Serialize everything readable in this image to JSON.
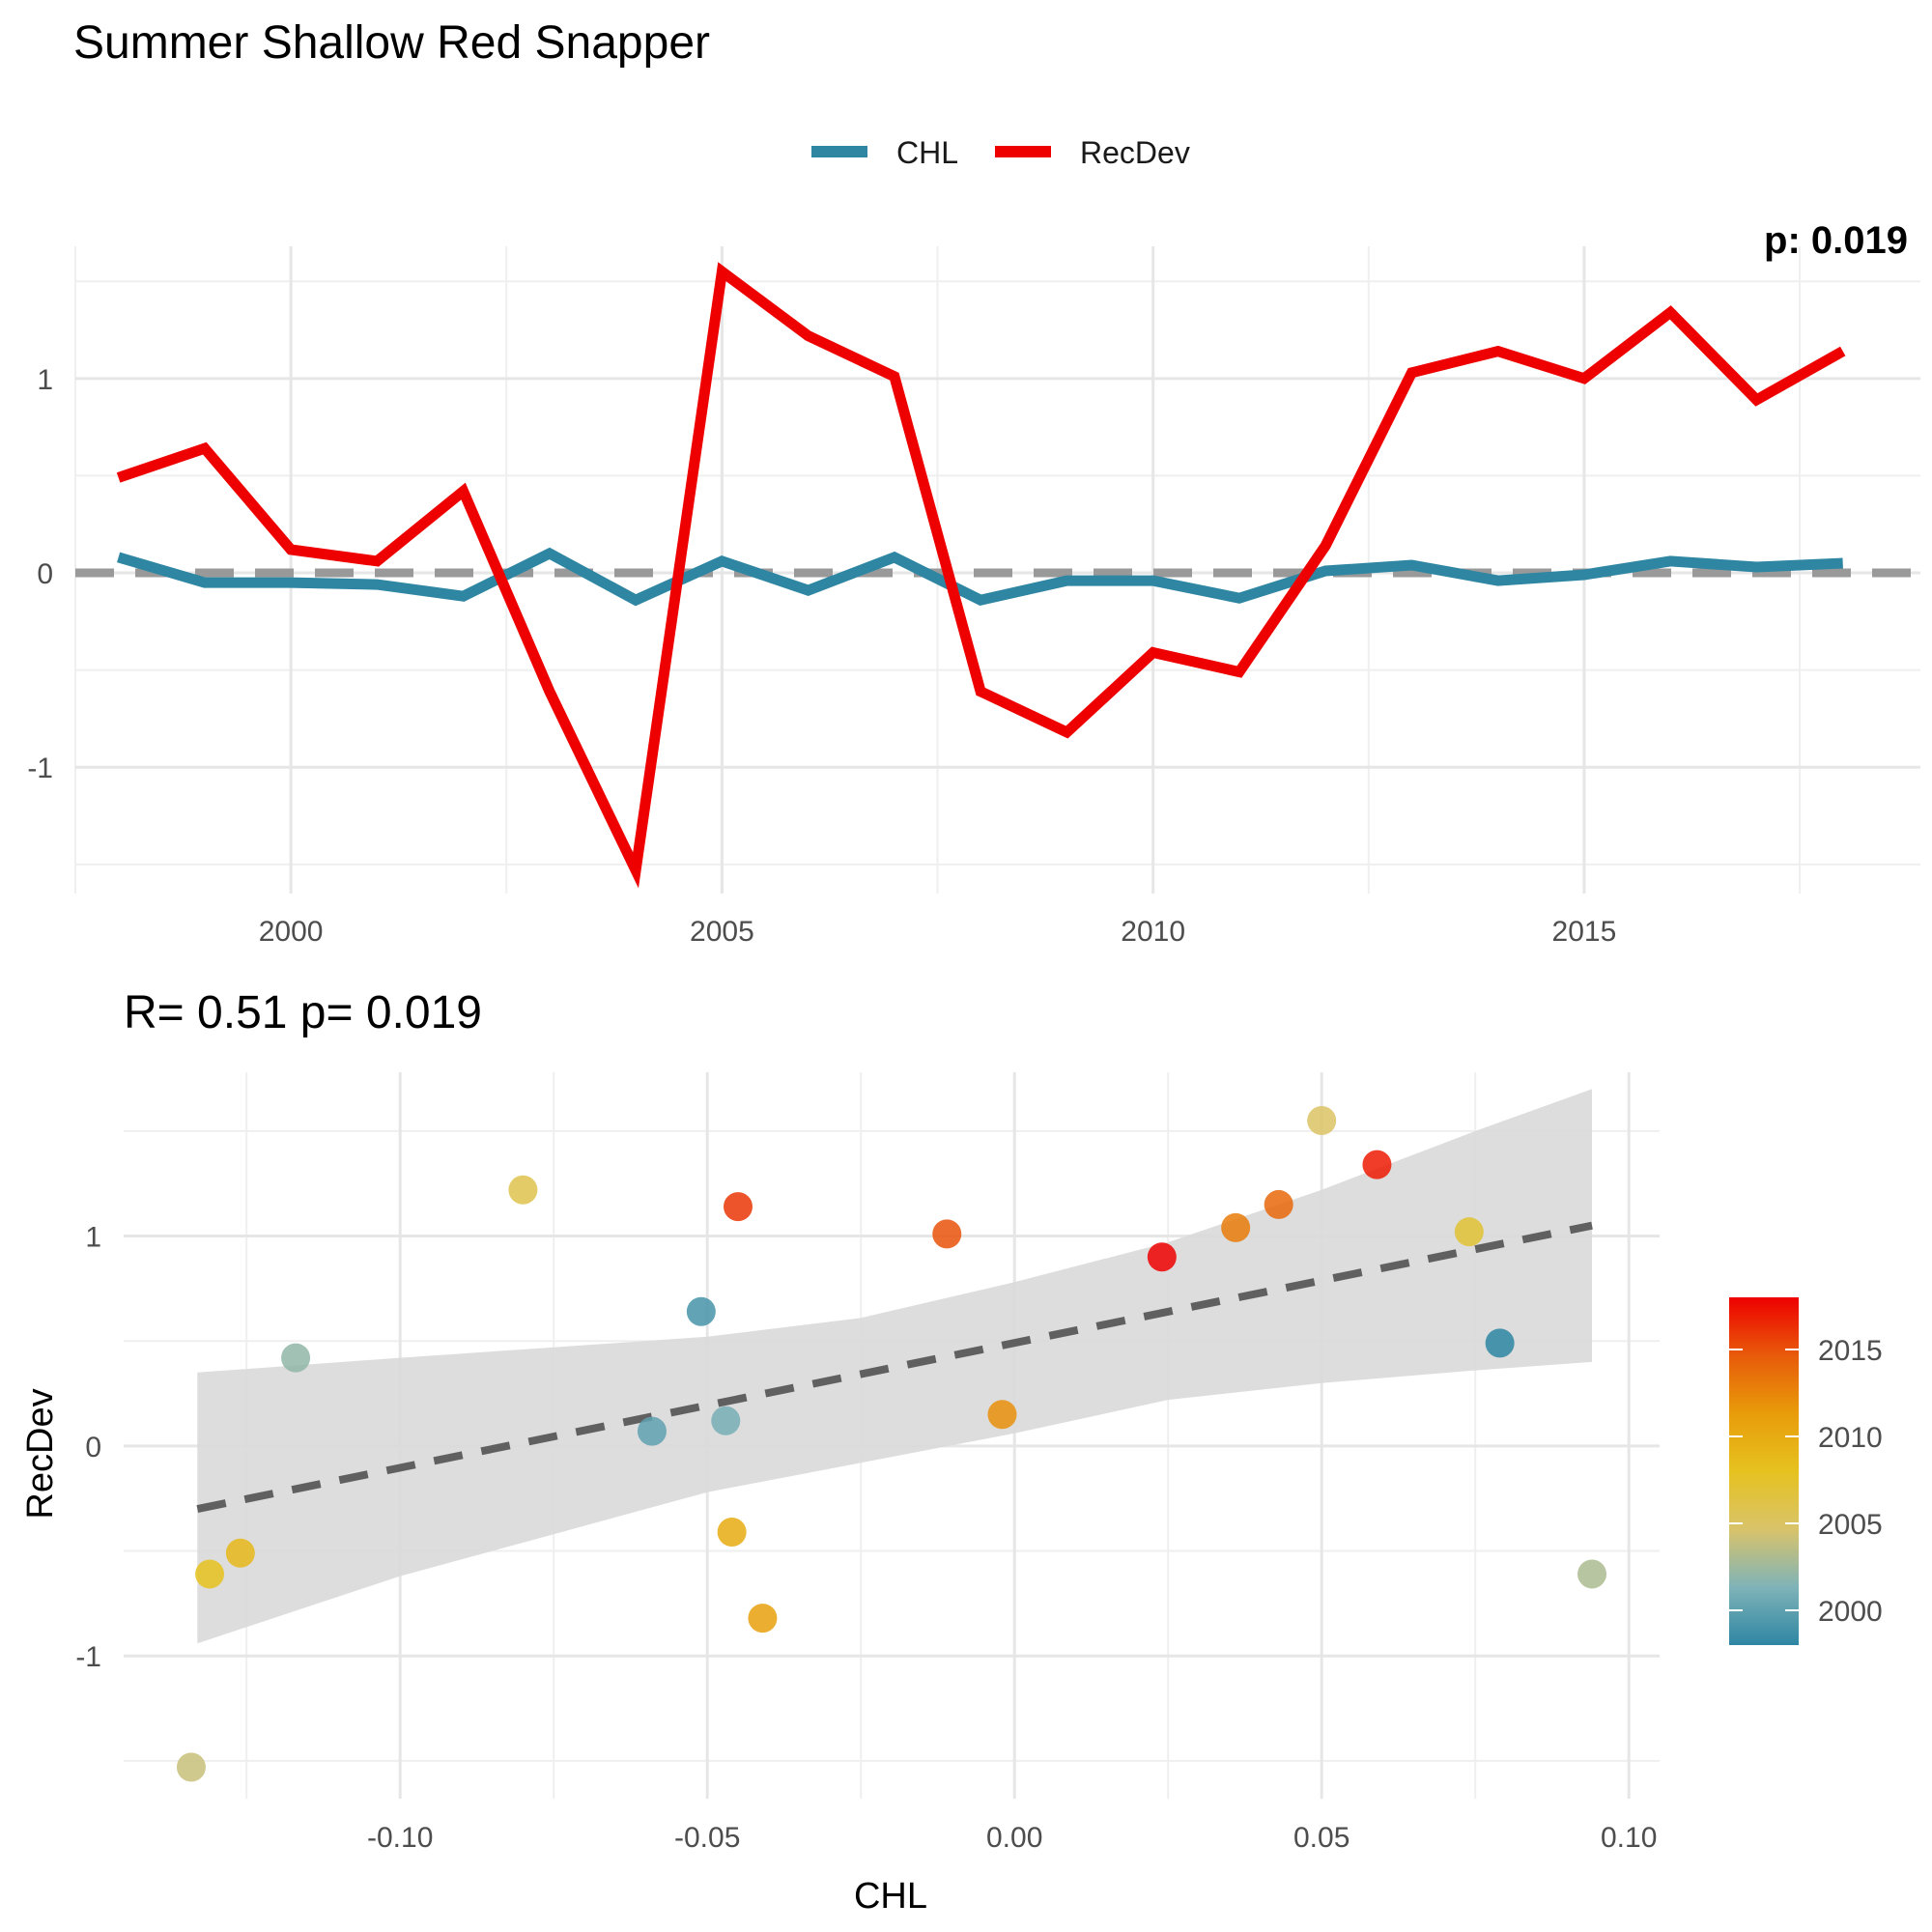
{
  "title": "Summer Shallow Red Snapper",
  "legend": {
    "items": [
      {
        "label": "CHL",
        "color": "#2e86a3"
      },
      {
        "label": "RecDev",
        "color": "#ee0000"
      }
    ]
  },
  "colors": {
    "chl": "#2e86a3",
    "recdev": "#ee0000",
    "zero_line": "#999999",
    "fit_line": "#606060",
    "ribbon": "#d9d9d9",
    "year_gradient": [
      "#2e86a3",
      "#7fb3b8",
      "#d9c36a",
      "#e6c21f",
      "#e89c0a",
      "#e85a0a",
      "#ee0000"
    ]
  },
  "corner_label": "p: 0.019",
  "chart_data": [
    {
      "type": "line",
      "title": "Summer Shallow Red Snapper",
      "xlabel": "",
      "ylabel": "",
      "xlim": [
        1997.5,
        2018.9
      ],
      "ylim": [
        -1.65,
        1.68
      ],
      "x_ticks": [
        2000,
        2005,
        2010,
        2015
      ],
      "y_ticks": [
        -1,
        0,
        1
      ],
      "grid": true,
      "legend_position": "top",
      "x": [
        1998,
        1999,
        2000,
        2001,
        2002,
        2003,
        2004,
        2005,
        2006,
        2007,
        2008,
        2009,
        2010,
        2011,
        2012,
        2013,
        2014,
        2015,
        2016,
        2017,
        2018
      ],
      "series": [
        {
          "name": "CHL",
          "values": [
            0.08,
            -0.05,
            -0.05,
            -0.06,
            -0.12,
            0.1,
            -0.14,
            0.06,
            -0.09,
            0.08,
            -0.14,
            -0.04,
            -0.04,
            -0.13,
            0.01,
            0.04,
            -0.04,
            -0.01,
            0.06,
            0.03,
            0.05
          ]
        },
        {
          "name": "RecDev",
          "values": [
            0.49,
            0.64,
            0.12,
            0.06,
            0.42,
            -0.61,
            -1.53,
            1.55,
            1.22,
            1.01,
            -0.61,
            -0.82,
            -0.41,
            -0.51,
            0.14,
            1.03,
            1.14,
            1.0,
            1.34,
            0.89,
            1.14
          ]
        }
      ]
    },
    {
      "type": "scatter",
      "title": "R= 0.51  p= 0.019",
      "xlabel": "CHL",
      "ylabel": "RecDev",
      "xlim": [
        -0.145,
        0.105
      ],
      "ylim": [
        -1.68,
        1.78
      ],
      "x_ticks": [
        "-0.10",
        "-0.05",
        "0.00",
        "0.05",
        "0.10"
      ],
      "x_tick_values": [
        -0.1,
        -0.05,
        0.0,
        0.05,
        0.1
      ],
      "y_ticks": [
        -1,
        0,
        1
      ],
      "grid": true,
      "legend_position": "right",
      "colorbar": {
        "ticks": [
          2000,
          2005,
          2010,
          2015
        ],
        "range": [
          1998,
          2018
        ]
      },
      "points": [
        {
          "x": 0.079,
          "y": 0.49,
          "year": 1998
        },
        {
          "x": -0.051,
          "y": 0.64,
          "year": 1999
        },
        {
          "x": -0.059,
          "y": 0.07,
          "year": 2000
        },
        {
          "x": -0.047,
          "y": 0.12,
          "year": 2001
        },
        {
          "x": -0.117,
          "y": 0.42,
          "year": 2002
        },
        {
          "x": 0.094,
          "y": -0.61,
          "year": 2003
        },
        {
          "x": -0.134,
          "y": -1.53,
          "year": 2004
        },
        {
          "x": 0.05,
          "y": 1.55,
          "year": 2005
        },
        {
          "x": -0.08,
          "y": 1.22,
          "year": 2006
        },
        {
          "x": 0.074,
          "y": 1.02,
          "year": 2007
        },
        {
          "x": -0.131,
          "y": -0.61,
          "year": 2008
        },
        {
          "x": -0.126,
          "y": -0.51,
          "year": 2009
        },
        {
          "x": -0.046,
          "y": -0.41,
          "year": 2010
        },
        {
          "x": -0.041,
          "y": -0.82,
          "year": 2011
        },
        {
          "x": -0.002,
          "y": 0.15,
          "year": 2012
        },
        {
          "x": 0.036,
          "y": 1.04,
          "year": 2013
        },
        {
          "x": 0.043,
          "y": 1.15,
          "year": 2014
        },
        {
          "x": -0.011,
          "y": 1.01,
          "year": 2015
        },
        {
          "x": -0.045,
          "y": 1.14,
          "year": 2016
        },
        {
          "x": 0.059,
          "y": 1.34,
          "year": 2017
        },
        {
          "x": 0.024,
          "y": 0.9,
          "year": 2018
        }
      ],
      "fit": {
        "x": [
          -0.133,
          0.094
        ],
        "y": [
          -0.3,
          1.05
        ]
      },
      "ribbon": {
        "x": [
          -0.133,
          -0.1,
          -0.075,
          -0.05,
          -0.025,
          0.0,
          0.025,
          0.05,
          0.075,
          0.094
        ],
        "lower": [
          -0.94,
          -0.62,
          -0.42,
          -0.22,
          -0.08,
          0.06,
          0.22,
          0.3,
          0.36,
          0.4
        ],
        "upper": [
          0.35,
          0.42,
          0.47,
          0.52,
          0.61,
          0.78,
          0.97,
          1.22,
          1.5,
          1.7
        ]
      }
    }
  ]
}
